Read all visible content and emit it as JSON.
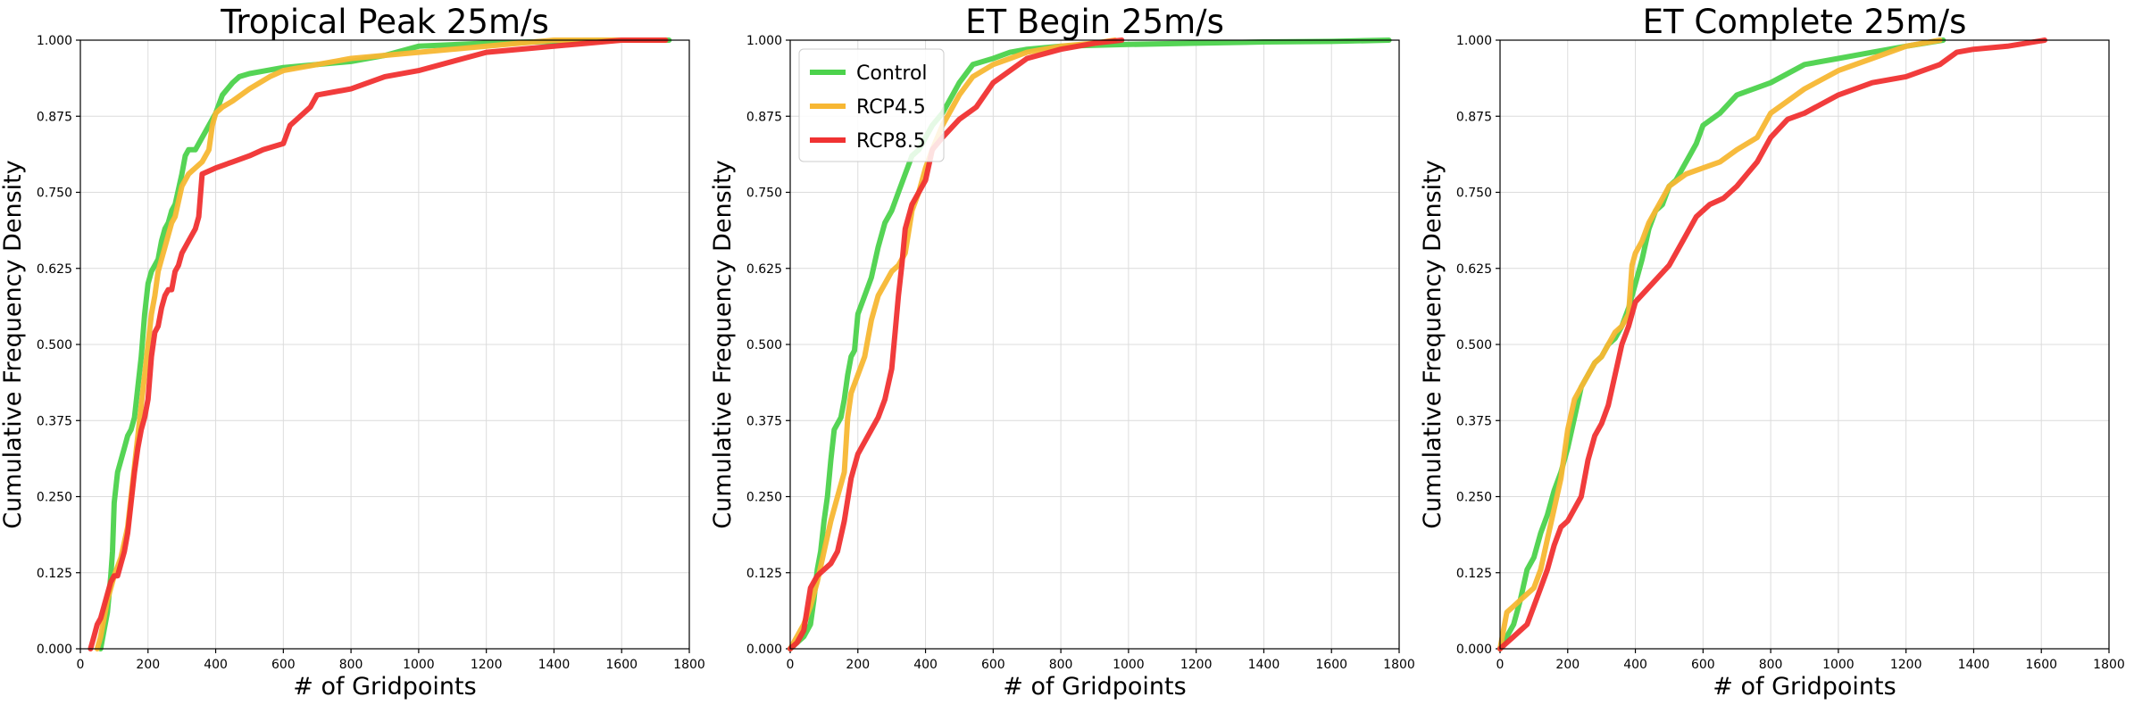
{
  "chart_data": [
    {
      "type": "line",
      "title": "Tropical Peak 25m/s",
      "xlabel": "# of Gridpoints",
      "ylabel": "Cumulative Frequency Density",
      "xlim": [
        0,
        1800
      ],
      "ylim": [
        0,
        1
      ],
      "xticks": [
        "0",
        "200",
        "400",
        "600",
        "800",
        "1000",
        "1200",
        "1400",
        "1600",
        "1800"
      ],
      "yticks": [
        "0.000",
        "0.125",
        "0.250",
        "0.375",
        "0.500",
        "0.625",
        "0.750",
        "0.875",
        "1.000"
      ],
      "grid": true,
      "legend": "none",
      "series": [
        {
          "name": "Control",
          "color": "#4cd24c",
          "x": [
            60,
            70,
            80,
            85,
            90,
            95,
            100,
            110,
            120,
            130,
            140,
            150,
            160,
            170,
            180,
            190,
            200,
            210,
            220,
            230,
            240,
            250,
            260,
            270,
            280,
            300,
            310,
            320,
            330,
            340,
            350,
            360,
            380,
            400,
            420,
            450,
            470,
            500,
            550,
            600,
            700,
            800,
            900,
            1000,
            1200,
            1400,
            1600,
            1740
          ],
          "y": [
            0.0,
            0.03,
            0.06,
            0.09,
            0.12,
            0.16,
            0.24,
            0.29,
            0.31,
            0.33,
            0.35,
            0.36,
            0.38,
            0.43,
            0.48,
            0.55,
            0.6,
            0.62,
            0.63,
            0.64,
            0.67,
            0.69,
            0.7,
            0.72,
            0.73,
            0.78,
            0.81,
            0.82,
            0.82,
            0.82,
            0.83,
            0.84,
            0.86,
            0.88,
            0.91,
            0.93,
            0.94,
            0.945,
            0.95,
            0.955,
            0.96,
            0.965,
            0.975,
            0.99,
            0.995,
            0.998,
            1.0,
            1.0
          ]
        },
        {
          "name": "RCP4.5",
          "color": "#f7b733",
          "x": [
            50,
            60,
            70,
            80,
            90,
            100,
            120,
            140,
            160,
            170,
            180,
            190,
            200,
            210,
            220,
            230,
            240,
            250,
            260,
            270,
            280,
            300,
            320,
            340,
            360,
            380,
            390,
            400,
            420,
            450,
            500,
            560,
            600,
            700,
            800,
            1000,
            1200,
            1400,
            1600,
            1730
          ],
          "y": [
            0.0,
            0.02,
            0.05,
            0.08,
            0.1,
            0.12,
            0.15,
            0.2,
            0.3,
            0.35,
            0.4,
            0.45,
            0.5,
            0.55,
            0.58,
            0.62,
            0.64,
            0.66,
            0.68,
            0.7,
            0.71,
            0.76,
            0.78,
            0.79,
            0.8,
            0.82,
            0.86,
            0.88,
            0.89,
            0.9,
            0.92,
            0.94,
            0.95,
            0.96,
            0.97,
            0.98,
            0.99,
            1.0,
            1.0,
            1.0
          ]
        },
        {
          "name": "RCP8.5",
          "color": "#f03232",
          "x": [
            30,
            40,
            50,
            60,
            70,
            80,
            90,
            100,
            110,
            120,
            130,
            140,
            150,
            160,
            170,
            180,
            190,
            200,
            210,
            220,
            230,
            240,
            250,
            260,
            270,
            280,
            290,
            300,
            320,
            340,
            350,
            360,
            400,
            450,
            500,
            540,
            600,
            620,
            640,
            660,
            680,
            700,
            800,
            900,
            1000,
            1200,
            1400,
            1600,
            1730
          ],
          "y": [
            0.0,
            0.02,
            0.04,
            0.05,
            0.07,
            0.09,
            0.11,
            0.12,
            0.12,
            0.14,
            0.16,
            0.19,
            0.24,
            0.29,
            0.33,
            0.36,
            0.38,
            0.41,
            0.48,
            0.52,
            0.53,
            0.56,
            0.58,
            0.59,
            0.59,
            0.62,
            0.63,
            0.65,
            0.67,
            0.69,
            0.71,
            0.78,
            0.79,
            0.8,
            0.81,
            0.82,
            0.83,
            0.86,
            0.87,
            0.88,
            0.89,
            0.91,
            0.92,
            0.94,
            0.95,
            0.98,
            0.99,
            1.0,
            1.0
          ]
        }
      ]
    },
    {
      "type": "line",
      "title": "ET Begin 25m/s",
      "xlabel": "# of Gridpoints",
      "ylabel": "Cumulative Frequency Density",
      "xlim": [
        0,
        1800
      ],
      "ylim": [
        0,
        1
      ],
      "xticks": [
        "0",
        "200",
        "400",
        "600",
        "800",
        "1000",
        "1200",
        "1400",
        "1600",
        "1800"
      ],
      "yticks": [
        "0.000",
        "0.125",
        "0.250",
        "0.375",
        "0.500",
        "0.625",
        "0.750",
        "0.875",
        "1.000"
      ],
      "grid": true,
      "legend": "top-left",
      "series": [
        {
          "name": "Control",
          "color": "#4cd24c",
          "x": [
            0,
            20,
            40,
            60,
            70,
            80,
            90,
            100,
            110,
            120,
            130,
            140,
            150,
            160,
            170,
            180,
            190,
            200,
            220,
            240,
            260,
            280,
            300,
            320,
            340,
            360,
            380,
            400,
            420,
            450,
            480,
            500,
            540,
            600,
            650,
            700,
            800,
            1000,
            1200,
            1400,
            1600,
            1770
          ],
          "y": [
            0.0,
            0.01,
            0.02,
            0.04,
            0.08,
            0.13,
            0.16,
            0.21,
            0.25,
            0.31,
            0.36,
            0.37,
            0.38,
            0.41,
            0.45,
            0.48,
            0.49,
            0.55,
            0.58,
            0.61,
            0.66,
            0.7,
            0.72,
            0.75,
            0.78,
            0.81,
            0.82,
            0.84,
            0.86,
            0.88,
            0.91,
            0.93,
            0.96,
            0.97,
            0.98,
            0.985,
            0.99,
            0.993,
            0.995,
            0.997,
            0.998,
            1.0
          ]
        },
        {
          "name": "RCP4.5",
          "color": "#f7b733",
          "x": [
            0,
            20,
            40,
            60,
            80,
            100,
            120,
            140,
            160,
            170,
            180,
            200,
            220,
            240,
            260,
            280,
            300,
            320,
            340,
            360,
            380,
            400,
            420,
            450,
            500,
            540,
            600,
            650,
            700,
            800,
            900,
            960
          ],
          "y": [
            0.0,
            0.02,
            0.04,
            0.07,
            0.11,
            0.16,
            0.21,
            0.25,
            0.29,
            0.38,
            0.42,
            0.45,
            0.48,
            0.54,
            0.58,
            0.6,
            0.62,
            0.63,
            0.65,
            0.72,
            0.75,
            0.79,
            0.82,
            0.86,
            0.91,
            0.94,
            0.96,
            0.97,
            0.98,
            0.99,
            0.995,
            1.0
          ]
        },
        {
          "name": "RCP8.5",
          "color": "#f03232",
          "x": [
            0,
            20,
            40,
            60,
            80,
            100,
            120,
            140,
            160,
            180,
            200,
            220,
            240,
            260,
            280,
            300,
            310,
            320,
            330,
            340,
            360,
            380,
            400,
            420,
            450,
            500,
            550,
            600,
            650,
            700,
            800,
            900,
            980
          ],
          "y": [
            0.0,
            0.01,
            0.03,
            0.1,
            0.12,
            0.13,
            0.14,
            0.16,
            0.21,
            0.28,
            0.32,
            0.34,
            0.36,
            0.38,
            0.41,
            0.46,
            0.52,
            0.58,
            0.63,
            0.69,
            0.73,
            0.75,
            0.77,
            0.82,
            0.84,
            0.87,
            0.89,
            0.93,
            0.95,
            0.97,
            0.985,
            0.995,
            1.0
          ]
        }
      ]
    },
    {
      "type": "line",
      "title": "ET Complete 25m/s",
      "xlabel": "# of Gridpoints",
      "ylabel": "Cumulative Frequency Density",
      "xlim": [
        0,
        1800
      ],
      "ylim": [
        0,
        1
      ],
      "xticks": [
        "0",
        "200",
        "400",
        "600",
        "800",
        "1000",
        "1200",
        "1400",
        "1600",
        "1800"
      ],
      "yticks": [
        "0.000",
        "0.125",
        "0.250",
        "0.375",
        "0.500",
        "0.625",
        "0.750",
        "0.875",
        "1.000"
      ],
      "grid": true,
      "legend": "none",
      "series": [
        {
          "name": "Control",
          "color": "#4cd24c",
          "x": [
            0,
            20,
            40,
            60,
            80,
            100,
            120,
            140,
            160,
            180,
            200,
            220,
            240,
            260,
            280,
            300,
            320,
            340,
            360,
            380,
            400,
            420,
            440,
            460,
            480,
            500,
            520,
            540,
            560,
            580,
            600,
            650,
            700,
            750,
            800,
            900,
            1000,
            1100,
            1200,
            1310
          ],
          "y": [
            0.0,
            0.02,
            0.04,
            0.08,
            0.13,
            0.15,
            0.19,
            0.22,
            0.26,
            0.29,
            0.33,
            0.38,
            0.43,
            0.45,
            0.47,
            0.48,
            0.5,
            0.51,
            0.53,
            0.56,
            0.6,
            0.64,
            0.69,
            0.72,
            0.73,
            0.76,
            0.77,
            0.79,
            0.81,
            0.83,
            0.86,
            0.88,
            0.91,
            0.92,
            0.93,
            0.96,
            0.97,
            0.98,
            0.99,
            1.0
          ]
        },
        {
          "name": "RCP4.5",
          "color": "#f7b733",
          "x": [
            0,
            20,
            40,
            60,
            80,
            100,
            120,
            140,
            160,
            180,
            200,
            220,
            240,
            260,
            280,
            300,
            320,
            340,
            360,
            380,
            390,
            400,
            420,
            440,
            460,
            480,
            500,
            550,
            600,
            650,
            700,
            760,
            800,
            850,
            900,
            1000,
            1100,
            1200,
            1300
          ],
          "y": [
            0.0,
            0.06,
            0.07,
            0.08,
            0.09,
            0.1,
            0.13,
            0.18,
            0.23,
            0.28,
            0.36,
            0.41,
            0.43,
            0.45,
            0.47,
            0.48,
            0.5,
            0.52,
            0.53,
            0.55,
            0.63,
            0.65,
            0.67,
            0.7,
            0.72,
            0.74,
            0.76,
            0.78,
            0.79,
            0.8,
            0.82,
            0.84,
            0.88,
            0.9,
            0.92,
            0.95,
            0.97,
            0.99,
            1.0
          ]
        },
        {
          "name": "RCP8.5",
          "color": "#f03232",
          "x": [
            0,
            20,
            40,
            60,
            80,
            100,
            120,
            140,
            160,
            180,
            200,
            220,
            240,
            260,
            280,
            300,
            320,
            340,
            360,
            380,
            400,
            450,
            500,
            540,
            580,
            620,
            660,
            700,
            730,
            760,
            800,
            850,
            900,
            1000,
            1100,
            1200,
            1300,
            1350,
            1400,
            1500,
            1610
          ],
          "y": [
            0.0,
            0.01,
            0.02,
            0.03,
            0.04,
            0.07,
            0.1,
            0.13,
            0.17,
            0.2,
            0.21,
            0.23,
            0.25,
            0.31,
            0.35,
            0.37,
            0.4,
            0.45,
            0.5,
            0.53,
            0.57,
            0.6,
            0.63,
            0.67,
            0.71,
            0.73,
            0.74,
            0.76,
            0.78,
            0.8,
            0.84,
            0.87,
            0.88,
            0.91,
            0.93,
            0.94,
            0.96,
            0.98,
            0.985,
            0.99,
            1.0
          ]
        }
      ]
    }
  ]
}
